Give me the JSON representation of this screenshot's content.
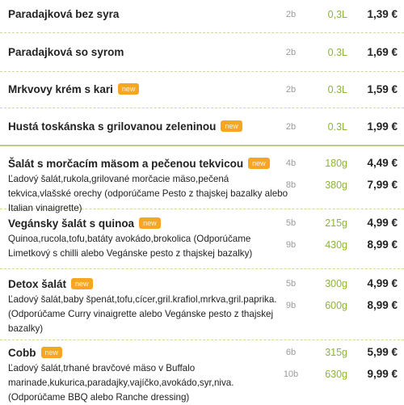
{
  "items": [
    {
      "name": "Paradajková bez syra",
      "variants": [
        {
          "portions": "2b",
          "size": "0,3L",
          "price": "1,39 €"
        }
      ]
    },
    {
      "name": "Paradajková so syrom",
      "variants": [
        {
          "portions": "2b",
          "size": "0.3L",
          "price": "1,69 €"
        }
      ]
    },
    {
      "name": "Mrkvovy krém s kari",
      "badge": "new",
      "variants": [
        {
          "portions": "2b",
          "size": "0.3L",
          "price": "1,59 €"
        }
      ]
    },
    {
      "name": "Hustá toskánska s grilovanou zeleninou",
      "badge": "new",
      "variants": [
        {
          "portions": "2b",
          "size": "0.3L",
          "price": "1,99 €"
        }
      ]
    },
    {
      "name": "Šalát s morčacím mäsom a pečenou tekvicou",
      "badge": "new",
      "description": "Ľadový šalát,rukola,grilované morčacie mäso,pečená tekvica,vlašské orechy (odporúčame Pesto z thajskej bazalky alebo Italian vinaigrette)",
      "variants": [
        {
          "portions": "4b",
          "size": "180g",
          "price": "4,49 €"
        },
        {
          "portions": "8b",
          "size": "380g",
          "price": "7,99 €"
        }
      ]
    },
    {
      "name": "Vegánsky šalát s quinoa",
      "badge": "new",
      "description": "Quinoa,rucola,tofu,batáty avokádo,brokolica (Odporúčame Limetkový s chilli alebo Vegánske pesto z thajskej bazalky)",
      "variants": [
        {
          "portions": "5b",
          "size": "215g",
          "price": "4,99 €"
        },
        {
          "portions": "9b",
          "size": "430g",
          "price": "8,99 €"
        }
      ]
    },
    {
      "name": "Detox šalát",
      "badge": "new",
      "description": "Ľadový šalát,baby špenát,tofu,cícer,gril.krafiol,mrkva,gril.paprika. (Odporúčame Curry vinaigrette alebo Vegánske pesto z thajskej bazalky)",
      "variants": [
        {
          "portions": "5b",
          "size": "300g",
          "price": "4,99 €"
        },
        {
          "portions": "9b",
          "size": "600g",
          "price": "8,99 €"
        }
      ]
    },
    {
      "name": "Cobb",
      "badge": "new",
      "description": "Ľadový šalát,trhané bravčové mäso v Buffalo marinade,kukurica,paradajky,vajíčko,avokádo,syr,niva.(Odporúčame BBQ alebo Ranche dressing)",
      "variants": [
        {
          "portions": "6b",
          "size": "315g",
          "price": "5,99 €"
        },
        {
          "portions": "10b",
          "size": "630g",
          "price": "9,99 €"
        }
      ]
    }
  ]
}
